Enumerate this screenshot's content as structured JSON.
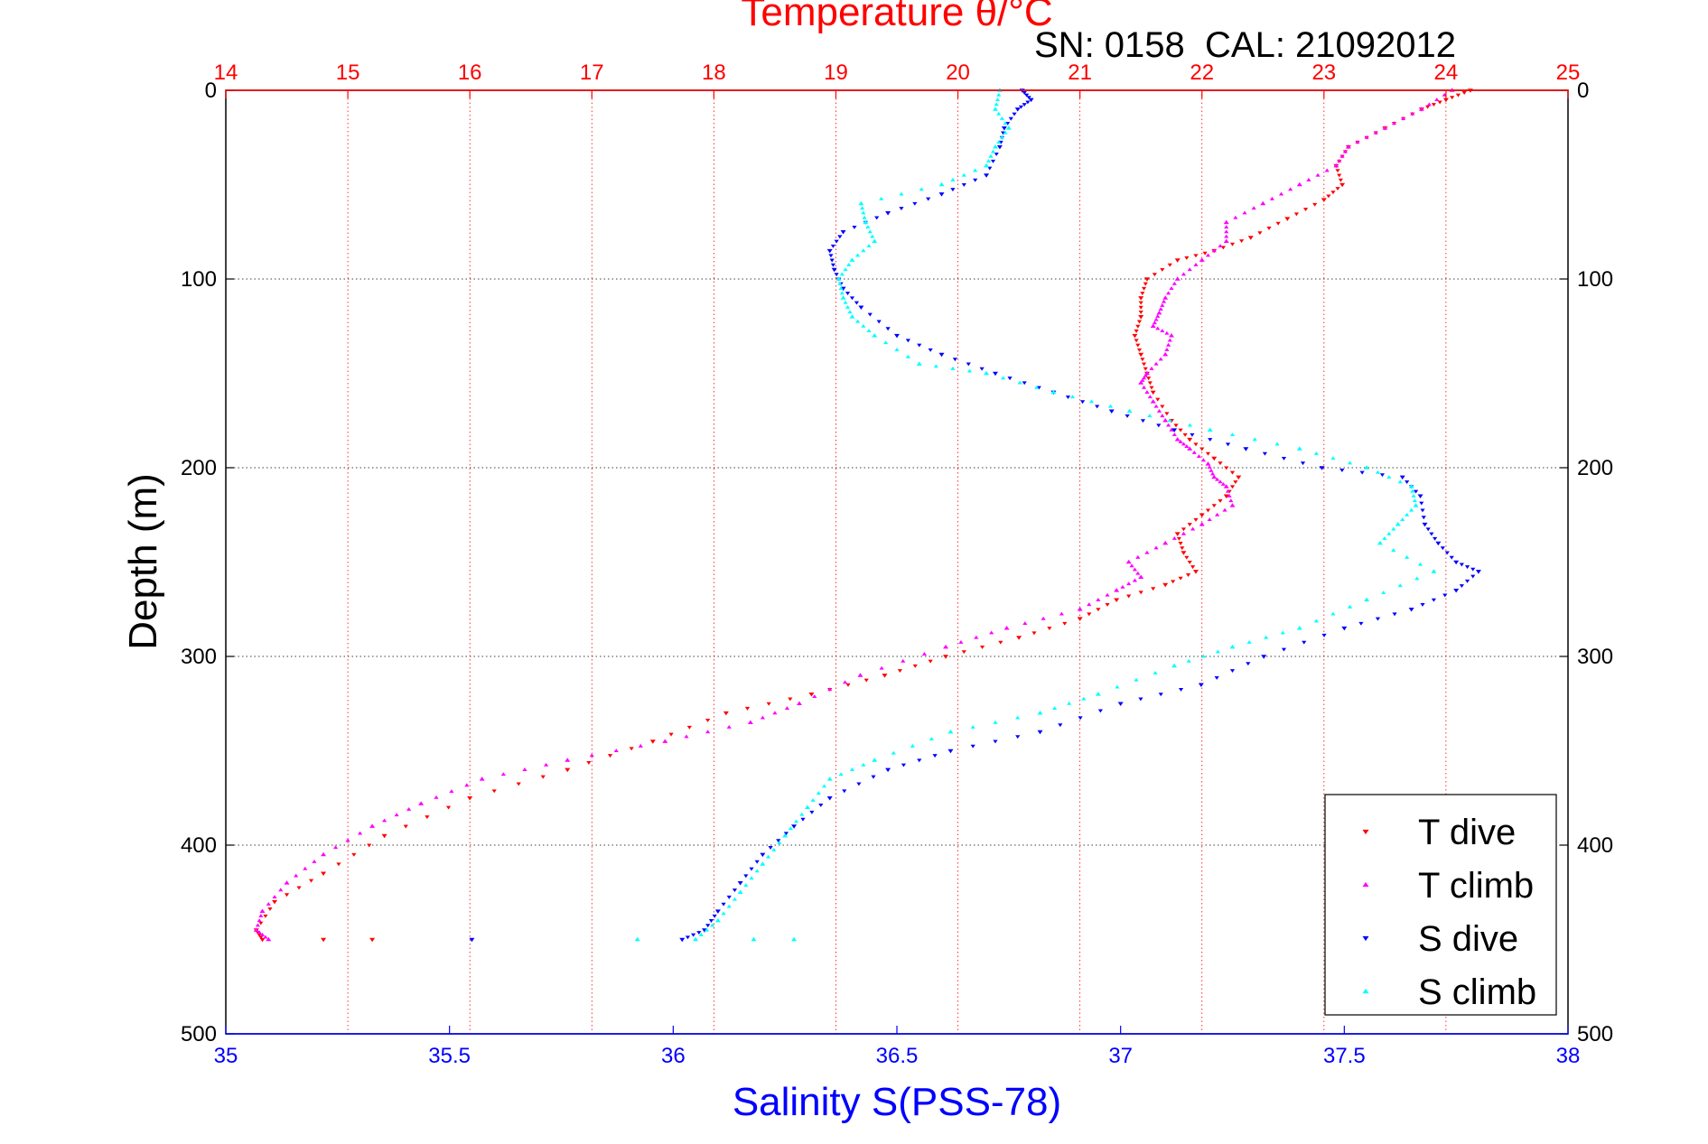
{
  "chart_data": {
    "type": "scatter",
    "title": "Temperature θ/°C",
    "subtitle": "SN: 0158  CAL: 21092012",
    "xlabel_bottom": "Salinity S(PSS-78)",
    "xlabel_top": "Temperature θ/°C",
    "ylabel": "Depth (m)",
    "ylim": [
      0,
      500
    ],
    "y_reversed": true,
    "xlim_bottom": [
      35,
      38
    ],
    "xlim_top": [
      14,
      25
    ],
    "yticks": [
      "0",
      "100",
      "200",
      "300",
      "400",
      "500"
    ],
    "ytick_values": [
      0,
      100,
      200,
      300,
      400,
      500
    ],
    "xticks_bottom": [
      "35",
      "35.5",
      "36",
      "36.5",
      "37",
      "37.5",
      "38"
    ],
    "xtick_values_bottom": [
      35,
      35.5,
      36,
      36.5,
      37,
      37.5,
      38
    ],
    "xticks_top": [
      "14",
      "15",
      "16",
      "17",
      "18",
      "19",
      "20",
      "21",
      "22",
      "23",
      "24",
      "25"
    ],
    "xtick_values_top": [
      14,
      15,
      16,
      17,
      18,
      19,
      20,
      21,
      22,
      23,
      24,
      25
    ],
    "grid": true,
    "legend_position": "bottom-right",
    "colors": {
      "temperature_axis": "#ff0000",
      "salinity_axis": "#0000ff",
      "t_dive": "#ff0000",
      "t_climb": "#ff00ff",
      "s_dive": "#0000ff",
      "s_climb": "#00ffff",
      "axes": "#000000"
    },
    "series": [
      {
        "name": "T dive",
        "axis": "temperature",
        "marker": "down-triangle",
        "color": "#ff0000",
        "x": [
          24.2,
          24.0,
          23.8,
          23.5,
          23.2,
          23.1,
          23.15,
          23.0,
          22.7,
          22.4,
          22.1,
          21.8,
          21.55,
          21.5,
          21.5,
          21.45,
          21.5,
          21.55,
          21.6,
          21.75,
          21.9,
          22.1,
          22.3,
          22.2,
          22.0,
          21.8,
          21.85,
          21.95,
          21.7,
          21.3,
          21.0,
          20.5,
          19.9,
          19.4,
          18.8,
          18.1,
          17.5,
          16.8,
          16.0,
          15.3,
          14.8,
          14.4,
          14.25,
          14.3,
          14.8,
          15.2
        ],
        "y": [
          0,
          5,
          10,
          20,
          30,
          40,
          50,
          58,
          68,
          78,
          85,
          90,
          100,
          110,
          120,
          130,
          140,
          150,
          160,
          175,
          185,
          195,
          205,
          215,
          225,
          235,
          245,
          255,
          262,
          270,
          280,
          290,
          300,
          310,
          320,
          330,
          345,
          360,
          375,
          395,
          415,
          430,
          445,
          450,
          450,
          450
        ]
      },
      {
        "name": "T climb",
        "axis": "temperature",
        "marker": "up-triangle",
        "color": "#ff00ff",
        "x": [
          24.05,
          23.8,
          23.5,
          23.2,
          23.1,
          22.8,
          22.5,
          22.2,
          22.2,
          22.0,
          21.8,
          21.7,
          21.65,
          21.6,
          21.75,
          21.7,
          21.55,
          21.5,
          21.6,
          21.7,
          21.8,
          21.9,
          22.05,
          22.1,
          22.2,
          22.25,
          22.0,
          21.7,
          21.4,
          21.5,
          21.3,
          21.0,
          20.4,
          19.9,
          19.2,
          18.7,
          18.3,
          17.6,
          16.8,
          16.1,
          15.6,
          15.2,
          14.8,
          14.5,
          14.3,
          14.25,
          14.35
        ],
        "y": [
          0,
          10,
          20,
          30,
          40,
          50,
          60,
          70,
          80,
          90,
          100,
          110,
          118,
          125,
          130,
          140,
          150,
          155,
          165,
          175,
          185,
          190,
          198,
          205,
          210,
          220,
          230,
          240,
          250,
          258,
          265,
          275,
          285,
          295,
          310,
          325,
          335,
          345,
          355,
          365,
          378,
          390,
          405,
          420,
          435,
          445,
          450
        ]
      },
      {
        "name": "S dive",
        "axis": "salinity",
        "marker": "down-triangle",
        "color": "#0000ff",
        "x": [
          36.78,
          36.8,
          36.77,
          36.74,
          36.73,
          36.7,
          36.6,
          36.48,
          36.38,
          36.35,
          36.36,
          36.38,
          36.42,
          36.5,
          36.6,
          36.72,
          36.85,
          36.98,
          37.12,
          37.28,
          37.45,
          37.63,
          37.67,
          37.68,
          37.71,
          37.75,
          37.8,
          37.75,
          37.65,
          37.5,
          37.32,
          37.18,
          37.0,
          36.82,
          36.62,
          36.48,
          36.35,
          36.27,
          36.2,
          36.15,
          36.1,
          36.07,
          36.02,
          35.55
        ],
        "y": [
          0,
          5,
          10,
          20,
          30,
          45,
          55,
          65,
          75,
          85,
          95,
          105,
          115,
          130,
          140,
          150,
          160,
          170,
          180,
          190,
          200,
          205,
          215,
          230,
          240,
          250,
          255,
          265,
          275,
          285,
          300,
          315,
          325,
          340,
          350,
          360,
          375,
          390,
          405,
          420,
          435,
          445,
          450,
          450
        ]
      },
      {
        "name": "S climb",
        "axis": "salinity",
        "marker": "up-triangle",
        "color": "#00ffff",
        "x": [
          36.73,
          36.72,
          36.75,
          36.72,
          36.7,
          36.6,
          36.42,
          36.43,
          36.45,
          36.4,
          36.37,
          36.38,
          36.4,
          36.45,
          36.55,
          36.7,
          36.85,
          37.02,
          37.2,
          37.4,
          37.55,
          37.65,
          37.66,
          37.62,
          37.58,
          37.7,
          37.55,
          37.4,
          37.25,
          37.12,
          36.95,
          36.82,
          36.62,
          36.45,
          36.35,
          36.3,
          36.25,
          36.2,
          36.15,
          36.1,
          36.05,
          36.18,
          36.27,
          35.92
        ],
        "y": [
          0,
          10,
          20,
          30,
          40,
          50,
          60,
          70,
          80,
          90,
          100,
          110,
          120,
          130,
          145,
          150,
          160,
          170,
          180,
          190,
          200,
          210,
          220,
          230,
          240,
          255,
          270,
          285,
          295,
          305,
          320,
          330,
          340,
          355,
          365,
          380,
          395,
          410,
          425,
          440,
          450,
          450,
          450,
          450
        ]
      }
    ]
  }
}
